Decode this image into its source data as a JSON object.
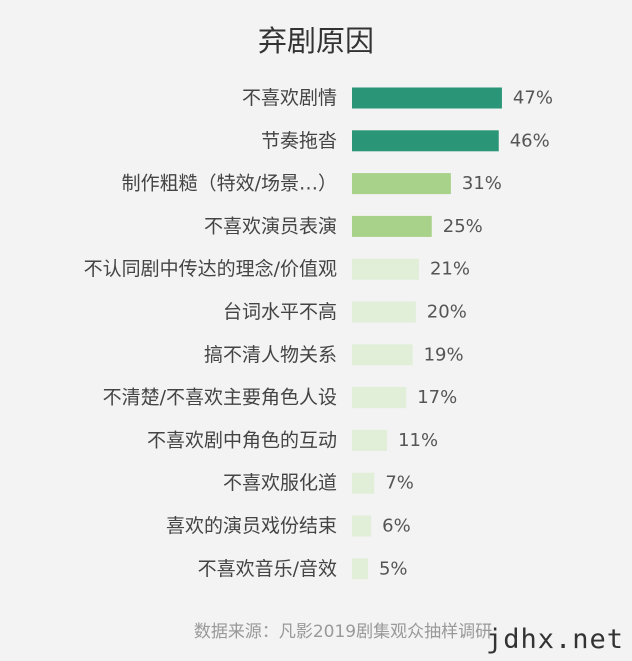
{
  "chart_data": {
    "type": "bar",
    "orientation": "horizontal",
    "title": "弃剧原因",
    "categories": [
      "不喜欢剧情",
      "节奏拖沓",
      "制作粗糙（特效/场景…）",
      "不喜欢演员表演",
      "不认同剧中传达的理念/价值观",
      "台词水平不高",
      "搞不清人物关系",
      "不清楚/不喜欢主要角色人设",
      "不喜欢剧中角色的互动",
      "不喜欢服化道",
      "喜欢的演员戏份结束",
      "不喜欢音乐/音效"
    ],
    "values": [
      47,
      46,
      31,
      25,
      21,
      20,
      19,
      17,
      11,
      7,
      6,
      5
    ],
    "value_labels": [
      "47%",
      "46%",
      "31%",
      "25%",
      "21%",
      "20%",
      "19%",
      "17%",
      "11%",
      "7%",
      "6%",
      "5%"
    ],
    "unit": "%",
    "bar_colors": [
      "#2a9677",
      "#2a9677",
      "#a8d18a",
      "#a8d18a",
      "#e1eed8",
      "#e1eed8",
      "#e1eed8",
      "#e1eed8",
      "#e1eed8",
      "#e1eed8",
      "#e1eed8",
      "#e1eed8"
    ],
    "grid": false,
    "legend": "none"
  },
  "source": "数据来源：凡影2019剧集观众抽样调研",
  "watermark": "jdhx.net"
}
